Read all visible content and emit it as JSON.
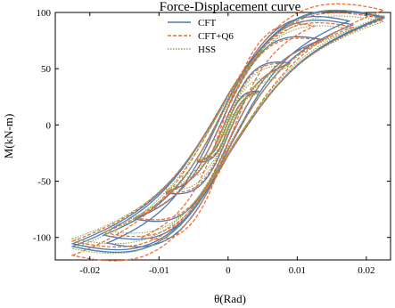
{
  "chart_data": {
    "type": "line",
    "title": "Force-Displacement curve",
    "xlabel": "θ(Rad)",
    "ylabel": "M(kN-m)",
    "xlim": [
      -0.025,
      0.0235
    ],
    "ylim": [
      -120,
      100
    ],
    "xticks": [
      -0.02,
      -0.01,
      0,
      0.01,
      0.02
    ],
    "xtick_labels": [
      "-0.02",
      "-0.01",
      "0",
      "0.01",
      "0.02"
    ],
    "yticks": [
      -100,
      -50,
      0,
      50,
      100
    ],
    "ytick_labels": [
      "-100",
      "-50",
      "0",
      "50",
      "100"
    ],
    "grid": false,
    "legend_position": "top-center",
    "colors": {
      "CFT": "#4a78b0",
      "CFT+Q6": "#e8703a",
      "HSS": "#8aa84a"
    },
    "series": [
      {
        "name": "CFT",
        "loops": [
          {
            "amp": 0.0045,
            "peak": 30,
            "width": 6
          },
          {
            "amp": 0.009,
            "peak": 55,
            "width": 18
          },
          {
            "amp": 0.0135,
            "peak": 76,
            "width": 32
          },
          {
            "amp": 0.018,
            "peak": 89,
            "width": 44
          },
          {
            "amp": 0.0225,
            "peak": 96,
            "width": 54
          },
          {
            "amp": -0.0175,
            "peak": -105,
            "width": 44
          },
          {
            "amp": -0.0225,
            "peak": -108,
            "width": 54
          }
        ]
      },
      {
        "name": "CFT+Q6",
        "loops": [
          {
            "amp": 0.0045,
            "peak": 29,
            "width": 5
          },
          {
            "amp": 0.009,
            "peak": 54,
            "width": 16
          },
          {
            "amp": 0.0135,
            "peak": 75,
            "width": 30
          },
          {
            "amp": 0.018,
            "peak": 87,
            "width": 42
          },
          {
            "amp": 0.0225,
            "peak": 94,
            "width": 52
          },
          {
            "amp": -0.0125,
            "peak": -100,
            "width": 32
          },
          {
            "amp": -0.0225,
            "peak": -116,
            "width": 54
          }
        ]
      },
      {
        "name": "HSS",
        "loops": [
          {
            "amp": 0.002,
            "peak": 12,
            "width": 3
          },
          {
            "amp": 0.0045,
            "peak": 28,
            "width": 6
          },
          {
            "amp": 0.007,
            "peak": 42,
            "width": 10
          },
          {
            "amp": 0.009,
            "peak": 52,
            "width": 14
          },
          {
            "amp": 0.018,
            "peak": 85,
            "width": 38
          },
          {
            "amp": 0.0225,
            "peak": 92,
            "width": 48
          },
          {
            "amp": -0.0225,
            "peak": -110,
            "width": 50
          }
        ]
      }
    ]
  }
}
